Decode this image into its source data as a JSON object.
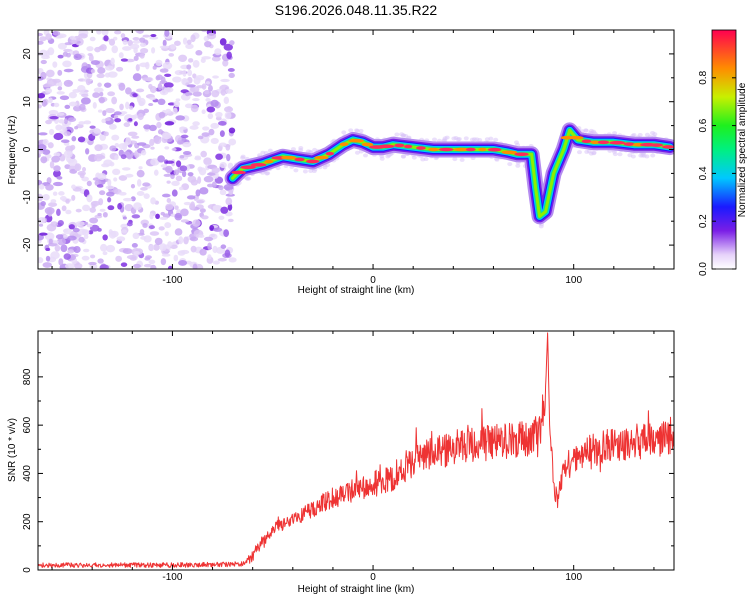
{
  "title": "S196.2026.048.11.35.R22",
  "chart_data": [
    {
      "type": "heatmap",
      "name": "spectrogram",
      "xlabel": "Height of straight line (km)",
      "ylabel": "Frequency (Hz)",
      "xlim": [
        -167,
        150
      ],
      "ylim": [
        -25,
        25
      ],
      "xticks": [
        -100,
        0,
        100
      ],
      "yticks": [
        -20,
        -10,
        0,
        10,
        20
      ],
      "ridge_x": [
        -70,
        -65,
        -55,
        -45,
        -38,
        -30,
        -22,
        -15,
        -10,
        -5,
        0,
        5,
        10,
        20,
        30,
        40,
        50,
        60,
        67,
        72,
        76,
        79,
        81,
        83,
        86,
        90,
        95,
        98,
        102,
        110,
        120,
        130,
        140,
        148
      ],
      "ridge_y": [
        -6,
        -4,
        -3,
        -1.5,
        -2,
        -2.5,
        -1,
        1,
        2,
        1.5,
        0.5,
        0.5,
        1,
        0.5,
        0,
        0,
        0,
        0,
        -0.5,
        -1,
        -1,
        -1,
        -8,
        -14,
        -13,
        -5,
        0,
        4,
        2,
        1.5,
        1.5,
        1,
        1,
        0.5
      ],
      "noise_region_x": [
        -167,
        -70
      ],
      "colorbar": {
        "label": "Normalized spectral amplitude",
        "range": [
          0,
          1
        ],
        "ticks": [
          "0.0",
          "0.2",
          "0.4",
          "0.6",
          "0.8"
        ]
      }
    },
    {
      "type": "line",
      "name": "snr",
      "xlabel": "Height of straight line (km)",
      "ylabel": "SNR (10 * v/v)",
      "xlim": [
        -167,
        150
      ],
      "ylim": [
        0,
        990
      ],
      "xticks": [
        -100,
        0,
        100
      ],
      "yticks": [
        0,
        200,
        400,
        600,
        800
      ],
      "series": [
        {
          "name": "SNR",
          "color": "#ee3333",
          "x": [
            -167,
            -140,
            -110,
            -80,
            -65,
            -60,
            -55,
            -50,
            -40,
            -30,
            -20,
            -10,
            0,
            10,
            20,
            30,
            40,
            50,
            60,
            70,
            80,
            84,
            86,
            87,
            88,
            90,
            92,
            95,
            100,
            110,
            120,
            130,
            140,
            150
          ],
          "y": [
            20,
            20,
            20,
            22,
            25,
            60,
            120,
            170,
            210,
            250,
            300,
            320,
            360,
            380,
            450,
            490,
            500,
            520,
            530,
            540,
            550,
            600,
            750,
            980,
            600,
            340,
            300,
            400,
            470,
            500,
            520,
            530,
            540,
            560
          ]
        }
      ]
    }
  ]
}
